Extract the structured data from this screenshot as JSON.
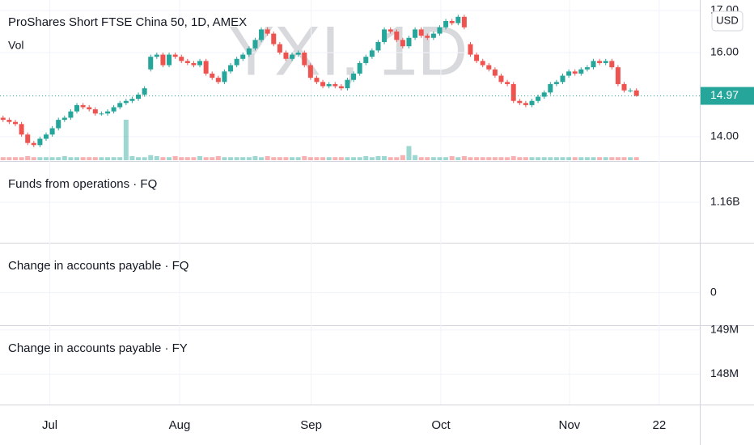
{
  "chart_data": {
    "type": "candlestick",
    "title": "ProShares Short FTSE China 50, 1D, AMEX",
    "watermark": "YXI, 1D",
    "volume_label": "Vol",
    "currency": "USD",
    "up_color": "#26a69a",
    "down_color": "#ef5350",
    "grid": true,
    "ylim": [
      13.44,
      17.25
    ],
    "yticks": [
      {
        "value": 14,
        "label": "14.00"
      },
      {
        "value": 16,
        "label": "16.00"
      },
      {
        "value": 17,
        "label": "17.00"
      }
    ],
    "xlim": [
      -0.5,
      113.3
    ],
    "xticks": [
      {
        "value": 7.6,
        "label": "Jul"
      },
      {
        "value": 28.7,
        "label": "Aug"
      },
      {
        "value": 50.1,
        "label": "Sep"
      },
      {
        "value": 71.2,
        "label": "Oct"
      },
      {
        "value": 92.1,
        "label": "Nov"
      },
      {
        "value": 106.7,
        "label": "22"
      }
    ],
    "ohlc": [
      [
        14.45,
        14.5,
        14.35,
        14.4
      ],
      [
        14.4,
        14.45,
        14.3,
        14.35
      ],
      [
        14.35,
        14.4,
        14.25,
        14.3
      ],
      [
        14.3,
        14.35,
        14.0,
        14.05
      ],
      [
        14.05,
        14.1,
        13.8,
        13.85
      ],
      [
        13.85,
        13.9,
        13.75,
        13.8
      ],
      [
        13.8,
        14.0,
        13.75,
        13.95
      ],
      [
        13.95,
        14.1,
        13.9,
        14.05
      ],
      [
        14.05,
        14.25,
        14.0,
        14.2
      ],
      [
        14.2,
        14.45,
        14.15,
        14.4
      ],
      [
        14.4,
        14.5,
        14.35,
        14.45
      ],
      [
        14.45,
        14.65,
        14.4,
        14.6
      ],
      [
        14.6,
        14.8,
        14.55,
        14.75
      ],
      [
        14.75,
        14.8,
        14.65,
        14.7
      ],
      [
        14.7,
        14.75,
        14.6,
        14.65
      ],
      [
        14.65,
        14.7,
        14.5,
        14.55
      ],
      [
        14.55,
        14.6,
        14.5,
        14.55
      ],
      [
        14.55,
        14.65,
        14.5,
        14.6
      ],
      [
        14.6,
        14.75,
        14.55,
        14.7
      ],
      [
        14.7,
        14.85,
        14.65,
        14.8
      ],
      [
        14.8,
        14.9,
        14.75,
        14.85
      ],
      [
        14.85,
        14.95,
        14.8,
        14.9
      ],
      [
        14.9,
        15.05,
        14.85,
        15.0
      ],
      [
        15.0,
        15.2,
        14.95,
        15.15
      ],
      [
        15.6,
        15.95,
        15.55,
        15.9
      ],
      [
        15.9,
        16.0,
        15.85,
        15.95
      ],
      [
        15.95,
        16.0,
        15.65,
        15.7
      ],
      [
        15.7,
        16.0,
        15.65,
        15.95
      ],
      [
        15.95,
        16.0,
        15.85,
        15.9
      ],
      [
        15.9,
        15.95,
        15.75,
        15.8
      ],
      [
        15.8,
        15.85,
        15.7,
        15.75
      ],
      [
        15.75,
        15.8,
        15.65,
        15.7
      ],
      [
        15.7,
        15.85,
        15.65,
        15.8
      ],
      [
        15.8,
        15.85,
        15.45,
        15.5
      ],
      [
        15.5,
        15.55,
        15.35,
        15.4
      ],
      [
        15.4,
        15.45,
        15.25,
        15.3
      ],
      [
        15.3,
        15.6,
        15.25,
        15.55
      ],
      [
        15.55,
        15.75,
        15.5,
        15.7
      ],
      [
        15.7,
        15.9,
        15.65,
        15.85
      ],
      [
        15.85,
        16.0,
        15.8,
        15.95
      ],
      [
        15.95,
        16.15,
        15.9,
        16.1
      ],
      [
        16.1,
        16.35,
        16.05,
        16.3
      ],
      [
        16.3,
        16.6,
        16.25,
        16.55
      ],
      [
        16.55,
        16.6,
        16.4,
        16.45
      ],
      [
        16.45,
        16.5,
        16.15,
        16.2
      ],
      [
        16.2,
        16.25,
        15.95,
        16.0
      ],
      [
        16.0,
        16.05,
        15.8,
        15.85
      ],
      [
        15.85,
        16.0,
        15.8,
        15.95
      ],
      [
        15.95,
        16.05,
        15.9,
        16.0
      ],
      [
        16.0,
        16.05,
        15.65,
        15.7
      ],
      [
        15.7,
        15.75,
        15.35,
        15.4
      ],
      [
        15.4,
        15.45,
        15.25,
        15.3
      ],
      [
        15.3,
        15.35,
        15.15,
        15.2
      ],
      [
        15.2,
        15.3,
        15.15,
        15.25
      ],
      [
        15.25,
        15.3,
        15.15,
        15.2
      ],
      [
        15.2,
        15.25,
        15.1,
        15.15
      ],
      [
        15.15,
        15.4,
        15.1,
        15.35
      ],
      [
        15.35,
        15.55,
        15.3,
        15.5
      ],
      [
        15.5,
        15.8,
        15.45,
        15.75
      ],
      [
        15.75,
        15.95,
        15.7,
        15.9
      ],
      [
        15.9,
        16.1,
        15.85,
        16.05
      ],
      [
        16.05,
        16.3,
        16.0,
        16.25
      ],
      [
        16.25,
        16.6,
        16.2,
        16.55
      ],
      [
        16.55,
        16.6,
        16.45,
        16.5
      ],
      [
        16.5,
        16.55,
        16.25,
        16.3
      ],
      [
        16.3,
        16.35,
        16.1,
        16.15
      ],
      [
        16.15,
        16.4,
        16.1,
        16.35
      ],
      [
        16.35,
        16.6,
        16.3,
        16.55
      ],
      [
        16.55,
        16.6,
        16.35,
        16.4
      ],
      [
        16.4,
        16.45,
        16.3,
        16.35
      ],
      [
        16.35,
        16.5,
        16.3,
        16.45
      ],
      [
        16.45,
        16.65,
        16.4,
        16.6
      ],
      [
        16.6,
        16.8,
        16.55,
        16.75
      ],
      [
        16.75,
        16.8,
        16.65,
        16.7
      ],
      [
        16.7,
        16.9,
        16.65,
        16.85
      ],
      [
        16.85,
        16.9,
        16.55,
        16.6
      ],
      [
        16.2,
        16.25,
        15.9,
        15.95
      ],
      [
        15.95,
        16.0,
        15.75,
        15.8
      ],
      [
        15.8,
        15.85,
        15.65,
        15.7
      ],
      [
        15.7,
        15.75,
        15.55,
        15.6
      ],
      [
        15.6,
        15.65,
        15.4,
        15.45
      ],
      [
        15.45,
        15.5,
        15.25,
        15.3
      ],
      [
        15.3,
        15.35,
        15.2,
        15.25
      ],
      [
        15.25,
        15.3,
        14.8,
        14.85
      ],
      [
        14.85,
        14.9,
        14.75,
        14.8
      ],
      [
        14.8,
        14.85,
        14.7,
        14.75
      ],
      [
        14.75,
        14.9,
        14.7,
        14.85
      ],
      [
        14.85,
        15.0,
        14.8,
        14.95
      ],
      [
        14.95,
        15.1,
        14.9,
        15.05
      ],
      [
        15.05,
        15.3,
        15.0,
        15.25
      ],
      [
        15.25,
        15.35,
        15.2,
        15.3
      ],
      [
        15.3,
        15.5,
        15.25,
        15.45
      ],
      [
        15.45,
        15.6,
        15.4,
        15.55
      ],
      [
        15.55,
        15.6,
        15.45,
        15.5
      ],
      [
        15.5,
        15.65,
        15.45,
        15.6
      ],
      [
        15.6,
        15.7,
        15.55,
        15.65
      ],
      [
        15.65,
        15.85,
        15.6,
        15.8
      ],
      [
        15.8,
        15.85,
        15.7,
        15.75
      ],
      [
        15.75,
        15.85,
        15.7,
        15.8
      ],
      [
        15.8,
        15.85,
        15.6,
        15.65
      ],
      [
        15.65,
        15.7,
        15.2,
        15.25
      ],
      [
        15.25,
        15.3,
        15.05,
        15.1
      ],
      [
        15.1,
        15.15,
        15.05,
        15.1
      ],
      [
        15.1,
        15.15,
        14.95,
        14.97
      ]
    ],
    "volume": [
      3,
      3,
      3,
      3,
      4,
      3,
      3,
      3,
      3,
      3,
      4,
      3,
      3,
      3,
      3,
      3,
      3,
      3,
      3,
      3,
      40,
      4,
      3,
      3,
      5,
      4,
      3,
      3,
      4,
      3,
      3,
      3,
      4,
      3,
      3,
      4,
      3,
      3,
      3,
      3,
      3,
      4,
      3,
      4,
      3,
      3,
      3,
      3,
      3,
      4,
      3,
      3,
      3,
      3,
      3,
      3,
      3,
      3,
      3,
      4,
      3,
      4,
      4,
      3,
      3,
      5,
      14,
      5,
      3,
      3,
      3,
      3,
      3,
      4,
      3,
      4,
      3,
      3,
      3,
      3,
      3,
      3,
      3,
      4,
      3,
      3,
      3,
      3,
      3,
      3,
      3,
      3,
      3,
      3,
      3,
      3,
      3,
      3,
      3,
      3,
      3,
      3,
      3,
      3
    ],
    "panes": [
      {
        "title": "Funds from operations · FQ",
        "ylim": [
          1140000000,
          1180000000
        ],
        "yticks": [
          {
            "value": 1160000000,
            "label": "1.16B"
          }
        ]
      },
      {
        "title": "Change in accounts payable · FQ",
        "ylim": [
          -1,
          1.5
        ],
        "yticks": [
          0
        ]
      },
      {
        "title": "Change in accounts payable · FY",
        "ylim": [
          147310000,
          149090000
        ],
        "yticks": [
          {
            "value": 149000000,
            "label": "149M"
          },
          {
            "value": 148000000,
            "label": "148M"
          }
        ]
      }
    ]
  }
}
